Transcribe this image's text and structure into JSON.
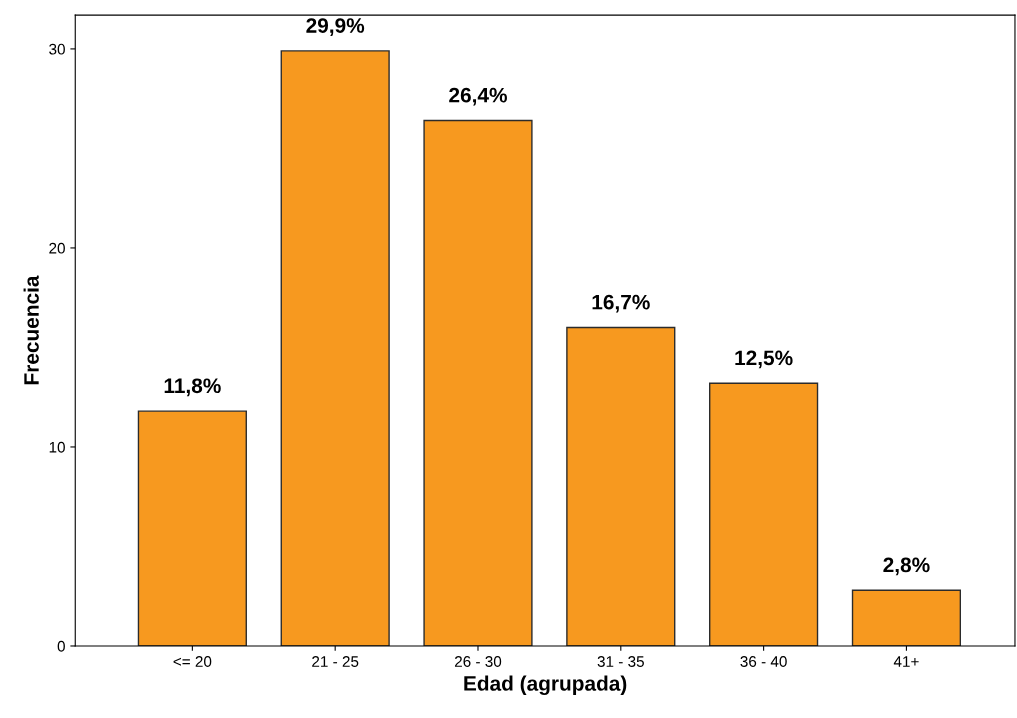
{
  "chart_data": {
    "type": "bar",
    "xlabel": "Edad (agrupada)",
    "ylabel": "Frecuencia",
    "categories": [
      "<= 20",
      "21 - 25",
      "26 - 30",
      "31 - 35",
      "36 - 40",
      "41+"
    ],
    "values": [
      11.8,
      29.9,
      26.4,
      16.0,
      13.2,
      2.8
    ],
    "annotations": [
      {
        "text": "11,8%",
        "x": "<= 20",
        "y": 11.8
      },
      {
        "text": "29,9%",
        "x": "21 - 25",
        "y": 29.9
      },
      {
        "text": "26,4%",
        "x": "26 - 30",
        "y": 26.4
      },
      {
        "text": "16,7%",
        "x": "31 - 35",
        "y": 16.0
      },
      {
        "text": "12,5%",
        "x": "36 - 40",
        "y": 13.2
      },
      {
        "text": "2,8%",
        "x": "41+",
        "y": 2.8
      }
    ],
    "color": "#f7991f",
    "ylim": [
      0,
      31.7
    ],
    "yticks": [
      0,
      10,
      20,
      30
    ],
    "grid": false,
    "legend": false
  }
}
